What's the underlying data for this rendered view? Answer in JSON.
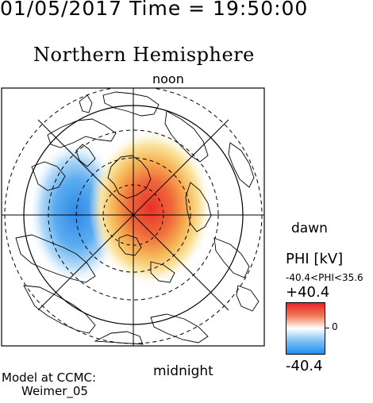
{
  "header": {
    "datetime": "01/05/2017 Time = 19:50:00"
  },
  "title": "Northern Hemisphere",
  "map": {
    "orientation_labels": {
      "noon": "noon",
      "midnight": "midnight",
      "dawn": "dawn",
      "dusk": ""
    },
    "colors": {
      "positive": "#e83424",
      "negative": "#2f8ae6",
      "frame": "#000000"
    }
  },
  "legend": {
    "title": "PHI [kV]",
    "range": "-40.4<PHI<35.6",
    "max_label": "+40.4",
    "zero_label": "0",
    "min_label": "-40.4",
    "max_value": 40.4,
    "min_value": -40.4,
    "colors": {
      "top": "#e8222a",
      "mid": "#ffffff",
      "bottom": "#1e8ff0"
    }
  },
  "model": {
    "line1": "Model at CCMC:",
    "line2": "Weimer_05"
  }
}
